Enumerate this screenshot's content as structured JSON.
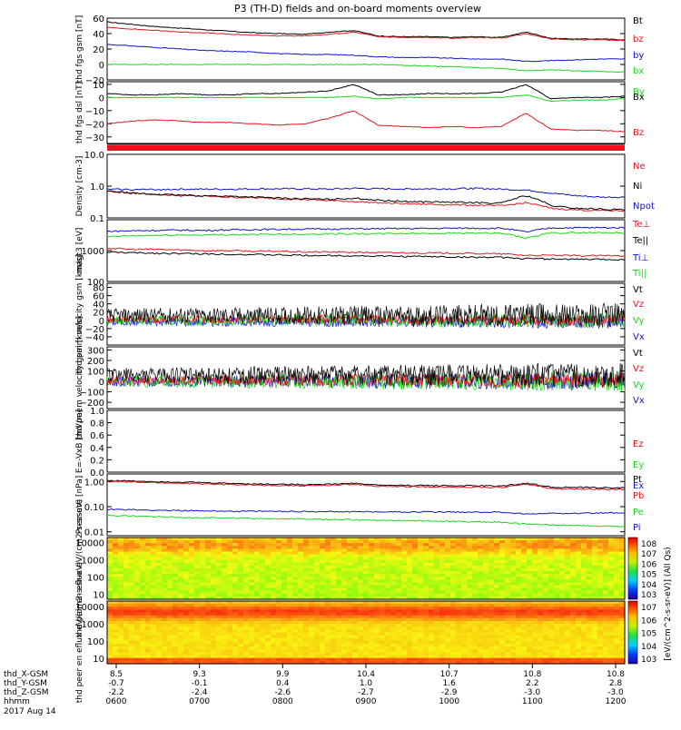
{
  "title": "P3 (TH-D) fields and on-board moments overview",
  "date_label": "2017 Aug 14",
  "colors": {
    "black": "#000000",
    "red": "#e8141c",
    "green": "#18d818",
    "blue": "#1010d0"
  },
  "colorbar": {
    "ion_ticks": [
      "10^8",
      "10^7",
      "10^6",
      "10^5",
      "10^4",
      "10^3"
    ],
    "elec_ticks": [
      "10^7",
      "10^6",
      "10^5",
      "10^4",
      "10^3"
    ],
    "label": "[eV/(cm^2-s-sr-eV)] (All Qs)"
  },
  "time_axis": {
    "row_labels": [
      "thd_X-GSM",
      "thd_Y-GSM",
      "thd_Z-GSM",
      "hhmm"
    ],
    "ticks": [
      {
        "x": "8.5",
        "y": "-0.7",
        "z": "-2.2",
        "t": "0600"
      },
      {
        "x": "9.3",
        "y": "-0.1",
        "z": "-2.4",
        "t": "0700"
      },
      {
        "x": "9.9",
        "y": "0.4",
        "z": "-2.6",
        "t": "0800"
      },
      {
        "x": "10.4",
        "y": "1.0",
        "z": "-2.7",
        "t": "0900"
      },
      {
        "x": "10.7",
        "y": "1.6",
        "z": "-2.9",
        "t": "1000"
      },
      {
        "x": "10.8",
        "y": "2.2",
        "z": "-3.0",
        "t": "1100"
      },
      {
        "x": "10.8",
        "y": "2.8",
        "z": "-3.0",
        "t": "1200"
      }
    ]
  },
  "chart_data": [
    {
      "type": "line",
      "panel": "fgs_gsm",
      "ylabel": "thd fgs gsm [nT]",
      "y_ticks": [
        "60",
        "40",
        "20",
        "0",
        "−20"
      ],
      "legend": [
        "Bt",
        "bz",
        "by",
        "bx"
      ],
      "series": [
        {
          "name": "Bt",
          "color": "black",
          "values": [
            55,
            52,
            49,
            47,
            45,
            43,
            41,
            40,
            39,
            42,
            44,
            37,
            36,
            36,
            35,
            36,
            35,
            42,
            34,
            33,
            33,
            32
          ]
        },
        {
          "name": "bz",
          "color": "red",
          "values": [
            48,
            46,
            44,
            42,
            41,
            39,
            38,
            37,
            37,
            39,
            42,
            36,
            35,
            35,
            34,
            35,
            34,
            40,
            33,
            32,
            32,
            31
          ]
        },
        {
          "name": "by",
          "color": "blue",
          "values": [
            26,
            24,
            22,
            20,
            18,
            17,
            16,
            14,
            13,
            13,
            12,
            10,
            9,
            9,
            8,
            7,
            7,
            4,
            5,
            6,
            7,
            7
          ]
        },
        {
          "name": "bx",
          "color": "green",
          "values": [
            0,
            0,
            0,
            0,
            0,
            0,
            0,
            0,
            0,
            0,
            0,
            0,
            -1,
            -2,
            -3,
            -4,
            -5,
            -8,
            -7,
            -8,
            -9,
            -10
          ]
        }
      ]
    },
    {
      "type": "line",
      "panel": "fgs_dsl",
      "ylabel": "thd fgs dsl [nT]",
      "y_ticks": [
        "10",
        "0",
        "−10",
        "−20",
        "−30"
      ],
      "legend": [
        "By",
        "Bx",
        "Bz"
      ],
      "series": [
        {
          "name": "By",
          "color": "green",
          "values": [
            0,
            0,
            0,
            0,
            0,
            0,
            0,
            0,
            0,
            0,
            1,
            -1,
            0,
            0,
            0,
            0,
            0,
            2,
            -3,
            -2,
            -2,
            -1
          ]
        },
        {
          "name": "Bx",
          "color": "black",
          "values": [
            3,
            2,
            2,
            3,
            2,
            2,
            3,
            3,
            4,
            5,
            10,
            2,
            2,
            3,
            3,
            3,
            4,
            10,
            -1,
            0,
            0,
            1
          ]
        },
        {
          "name": "Bz",
          "color": "red",
          "values": [
            -20,
            -18,
            -17,
            -18,
            -19,
            -19,
            -20,
            -21,
            -20,
            -16,
            -10,
            -21,
            -22,
            -23,
            -22,
            -23,
            -22,
            -12,
            -24,
            -25,
            -25,
            -26
          ]
        }
      ]
    },
    {
      "type": "line",
      "panel": "density",
      "ylabel": "Density [cm-3]",
      "y_ticks": [
        "10.0",
        "1.0",
        "0.1"
      ],
      "scale": "log",
      "legend": [
        "Ne",
        "Ni",
        "Npot"
      ],
      "series": [
        {
          "name": "Ne",
          "color": "red",
          "values": [
            0.7,
            0.6,
            0.55,
            0.5,
            0.48,
            0.45,
            0.43,
            0.4,
            0.38,
            0.35,
            0.33,
            0.3,
            0.28,
            0.27,
            0.26,
            0.25,
            0.24,
            0.3,
            0.2,
            0.18,
            0.17,
            0.17
          ]
        },
        {
          "name": "Ni",
          "color": "black",
          "values": [
            0.7,
            0.6,
            0.55,
            0.52,
            0.5,
            0.48,
            0.45,
            0.42,
            0.4,
            0.38,
            0.42,
            0.36,
            0.33,
            0.32,
            0.31,
            0.3,
            0.29,
            0.5,
            0.24,
            0.2,
            0.19,
            0.18
          ]
        },
        {
          "name": "Npot",
          "color": "blue",
          "values": [
            0.8,
            0.78,
            0.78,
            0.8,
            0.8,
            0.8,
            0.82,
            0.82,
            0.82,
            0.8,
            0.85,
            0.82,
            0.82,
            0.82,
            0.82,
            0.85,
            0.8,
            0.75,
            0.6,
            0.5,
            0.45,
            0.45
          ]
        }
      ]
    },
    {
      "type": "line",
      "panel": "temperature",
      "ylabel": "magt3 [eV]",
      "y_ticks": [
        "1000",
        "100"
      ],
      "scale": "log",
      "legend": [
        "Te⊥",
        "Te||",
        "Ti⊥",
        "Ti||"
      ],
      "series": [
        {
          "name": "Ti⊥",
          "color": "blue",
          "values": [
            4200,
            4400,
            4500,
            4600,
            4500,
            4700,
            4800,
            4900,
            5000,
            5000,
            5100,
            5100,
            5200,
            5200,
            5300,
            5300,
            5300,
            4000,
            5400,
            5500,
            5500,
            5500
          ]
        },
        {
          "name": "Ti||",
          "color": "green",
          "values": [
            2800,
            3000,
            3100,
            3200,
            3200,
            3300,
            3300,
            3400,
            3400,
            3500,
            3500,
            3500,
            3600,
            3600,
            3700,
            3700,
            3600,
            2500,
            3700,
            3800,
            3800,
            3800
          ]
        },
        {
          "name": "Te⊥",
          "color": "red",
          "values": [
            1200,
            1100,
            1100,
            1050,
            1000,
            1000,
            950,
            950,
            900,
            900,
            880,
            860,
            850,
            840,
            820,
            800,
            780,
            700,
            700,
            680,
            680,
            680
          ]
        },
        {
          "name": "Te||",
          "color": "black",
          "values": [
            900,
            850,
            820,
            800,
            780,
            760,
            740,
            720,
            700,
            690,
            680,
            660,
            650,
            640,
            620,
            610,
            600,
            550,
            540,
            520,
            520,
            510
          ]
        }
      ]
    },
    {
      "type": "line",
      "panel": "peim_velocity",
      "ylabel": "thd peim velocity gsm [km/s]",
      "y_ticks": [
        "80",
        "60",
        "40",
        "20",
        "0",
        "−20",
        "−40"
      ],
      "legend": [
        "Vt",
        "Vz",
        "Vy",
        "Vx"
      ]
    },
    {
      "type": "line",
      "panel": "peem_velocity",
      "ylabel": "thd peem velocity gsm [km/s]",
      "y_ticks": [
        "300",
        "200",
        "100",
        "0",
        "−100",
        "−200"
      ],
      "legend": [
        "Vt",
        "Vz",
        "Vy",
        "Vx"
      ]
    },
    {
      "type": "line",
      "panel": "efield",
      "ylabel": "E=-VxB [mV/m]",
      "y_ticks": [
        "1.0",
        "0.8",
        "0.6",
        "0.4",
        "0.2",
        "0.0"
      ],
      "legend": [
        "Ez",
        "Ey",
        "Ex"
      ]
    },
    {
      "type": "line",
      "panel": "pressure",
      "ylabel": "Pressure [nPa]",
      "y_ticks": [
        "1.00",
        "0.10",
        "0.01"
      ],
      "scale": "log",
      "legend": [
        "Pt",
        "Pb",
        "Pe",
        "Pi"
      ],
      "series": [
        {
          "name": "Pt",
          "color": "black",
          "values": [
            1.1,
            1.05,
            1.0,
            0.95,
            0.9,
            0.85,
            0.8,
            0.78,
            0.76,
            0.78,
            0.85,
            0.72,
            0.7,
            0.7,
            0.68,
            0.68,
            0.66,
            0.85,
            0.6,
            0.58,
            0.57,
            0.56
          ]
        },
        {
          "name": "Pb",
          "color": "red",
          "values": [
            1.0,
            0.95,
            0.9,
            0.85,
            0.8,
            0.76,
            0.72,
            0.7,
            0.68,
            0.7,
            0.78,
            0.64,
            0.62,
            0.62,
            0.6,
            0.6,
            0.58,
            0.78,
            0.52,
            0.5,
            0.49,
            0.48
          ]
        },
        {
          "name": "Pi",
          "color": "blue",
          "values": [
            0.08,
            0.075,
            0.072,
            0.07,
            0.068,
            0.066,
            0.065,
            0.065,
            0.064,
            0.064,
            0.063,
            0.063,
            0.062,
            0.062,
            0.061,
            0.061,
            0.06,
            0.05,
            0.055,
            0.055,
            0.056,
            0.056
          ]
        },
        {
          "name": "Pe",
          "color": "green",
          "values": [
            0.045,
            0.042,
            0.04,
            0.038,
            0.036,
            0.035,
            0.034,
            0.033,
            0.032,
            0.031,
            0.03,
            0.029,
            0.028,
            0.027,
            0.026,
            0.025,
            0.024,
            0.02,
            0.019,
            0.018,
            0.017,
            0.016
          ]
        }
      ]
    },
    {
      "type": "heatmap",
      "panel": "peir_en_eflux",
      "ylabel": "thd peir en eflux eV/(cm2-s-sr-eV)",
      "y_ticks": [
        "10000",
        "1000",
        "100",
        "10"
      ]
    },
    {
      "type": "heatmap",
      "panel": "peer_en_eflux",
      "ylabel": "thd peer en eflux eV/(cm2-s-sr-eV)",
      "y_ticks": [
        "10000",
        "1000",
        "100",
        "10"
      ]
    }
  ]
}
